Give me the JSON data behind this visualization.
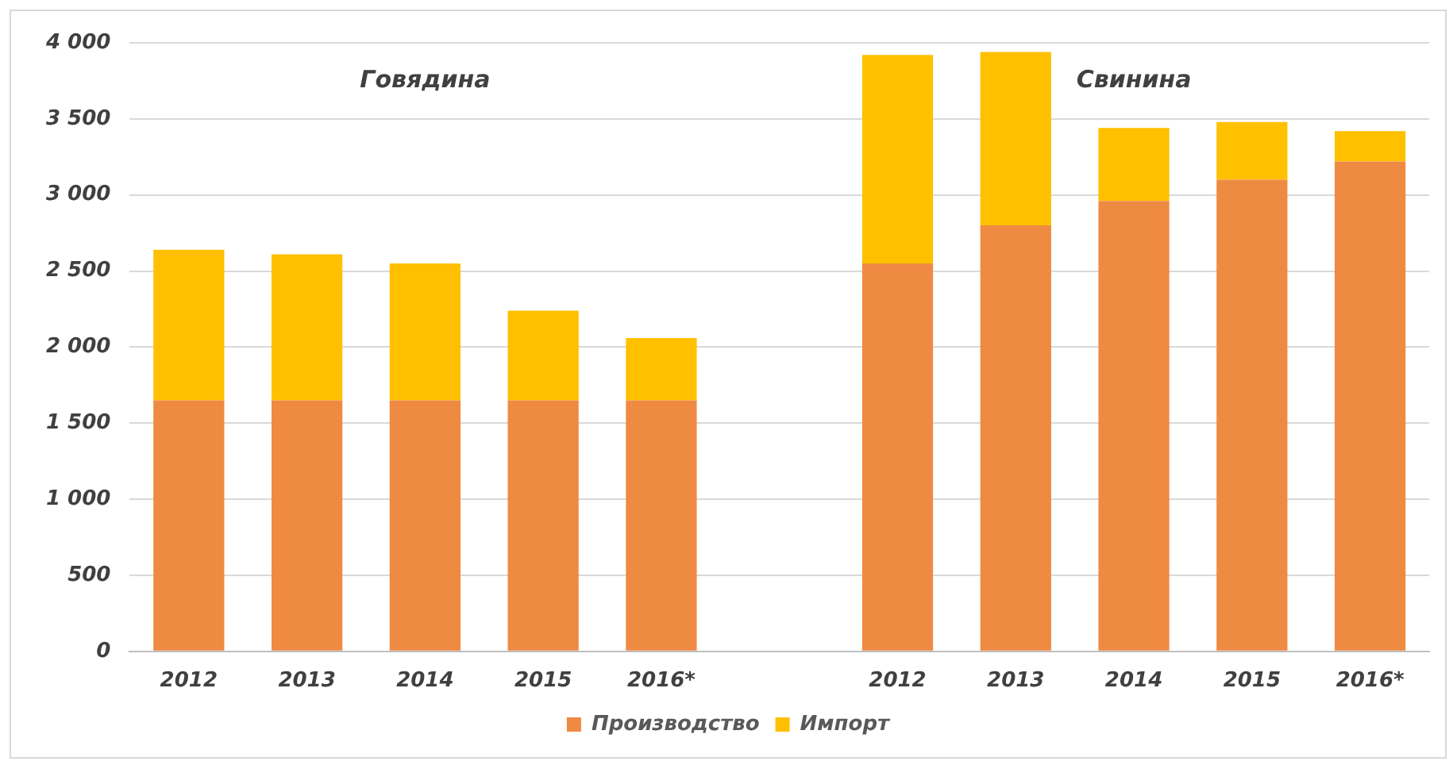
{
  "chart_data": {
    "type": "bar",
    "stacked": true,
    "categories": [
      "2012",
      "2013",
      "2014",
      "2015",
      "2016*",
      null,
      "2012",
      "2013",
      "2014",
      "2015",
      "2016*"
    ],
    "series": [
      {
        "name": "Производство",
        "color": "#ef8a43",
        "values": [
          1650,
          1650,
          1650,
          1650,
          1650,
          null,
          2550,
          2800,
          2960,
          3100,
          3220
        ]
      },
      {
        "name": "Импорт",
        "color": "#ffc000",
        "values": [
          990,
          960,
          900,
          590,
          410,
          null,
          1370,
          1140,
          480,
          380,
          200
        ]
      }
    ],
    "ylim": [
      0,
      4000
    ],
    "yticks": [
      0,
      500,
      {
        "value": 1000,
        "label": "1 000"
      },
      {
        "value": 1500,
        "label": "1 500"
      },
      {
        "value": 2000,
        "label": "2 000"
      },
      {
        "value": 2500,
        "label": "2 500"
      },
      {
        "value": 3000,
        "label": "3 000"
      },
      {
        "value": 3500,
        "label": "3 500"
      },
      {
        "value": 4000,
        "label": "4 000"
      }
    ],
    "grid": "y",
    "legend": "bottom",
    "annotations": [
      "Говядина",
      "Свинина"
    ]
  }
}
